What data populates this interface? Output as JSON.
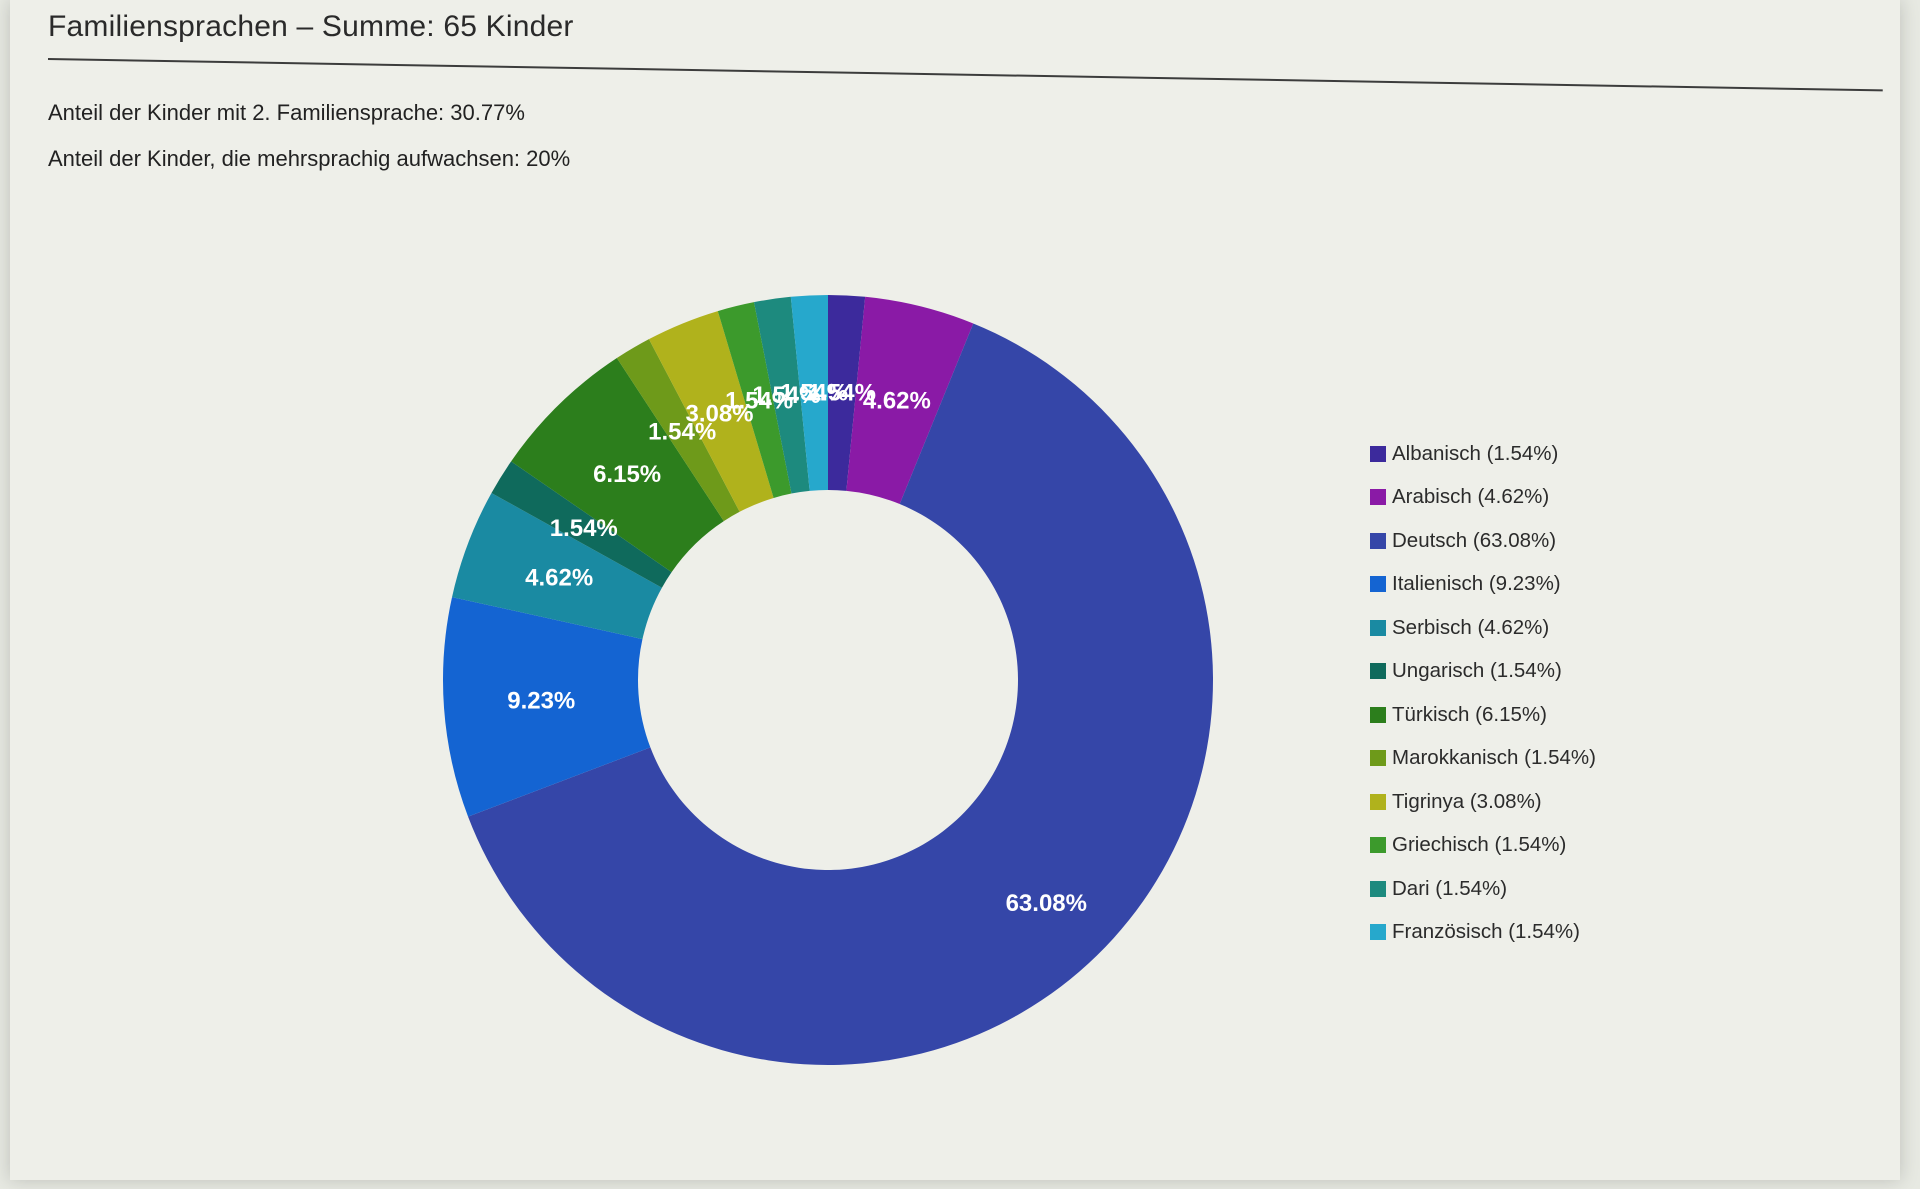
{
  "header": {
    "title": "Familiensprachen – Summe: 65 Kinder"
  },
  "stats": {
    "second_language": "Anteil der Kinder mit 2. Familiensprache: 30.77%",
    "multilingual": "Anteil der Kinder, die mehrsprachig aufwachsen: 20%"
  },
  "chart_data": {
    "type": "pie",
    "donut": true,
    "title": "",
    "legend_position": "right",
    "show_slice_labels": true,
    "categories": [
      "Albanisch",
      "Arabisch",
      "Deutsch",
      "Italienisch",
      "Serbisch",
      "Ungarisch",
      "Türkisch",
      "Marokkanisch",
      "Tigrinya",
      "Griechisch",
      "Dari",
      "Französisch"
    ],
    "values": [
      1.54,
      4.62,
      63.08,
      9.23,
      4.62,
      1.54,
      6.15,
      1.54,
      3.08,
      1.54,
      1.54,
      1.54
    ],
    "slice_labels": [
      "1.54%",
      "4.62%",
      "63.08%",
      "9.23%",
      "4.62%",
      "1.54%",
      "6.15%",
      "1.54%",
      "3.08%",
      "1.54%",
      "1.54%",
      "1.54%"
    ],
    "legend_labels": [
      "Albanisch (1.54%)",
      "Arabisch (4.62%)",
      "Deutsch (63.08%)",
      "Italienisch (9.23%)",
      "Serbisch (4.62%)",
      "Ungarisch (1.54%)",
      "Türkisch (6.15%)",
      "Marokkanisch (1.54%)",
      "Tigrinya (3.08%)",
      "Griechisch (1.54%)",
      "Dari (1.54%)",
      "Französisch (1.54%)"
    ],
    "colors": [
      "#3c2a9c",
      "#8a1aa6",
      "#3546a8",
      "#1464d2",
      "#1a8aa2",
      "#0f6a5c",
      "#2c7e1c",
      "#6e9a1a",
      "#b0b21c",
      "#3c9a2c",
      "#1d8a7e",
      "#26a8cc"
    ]
  }
}
